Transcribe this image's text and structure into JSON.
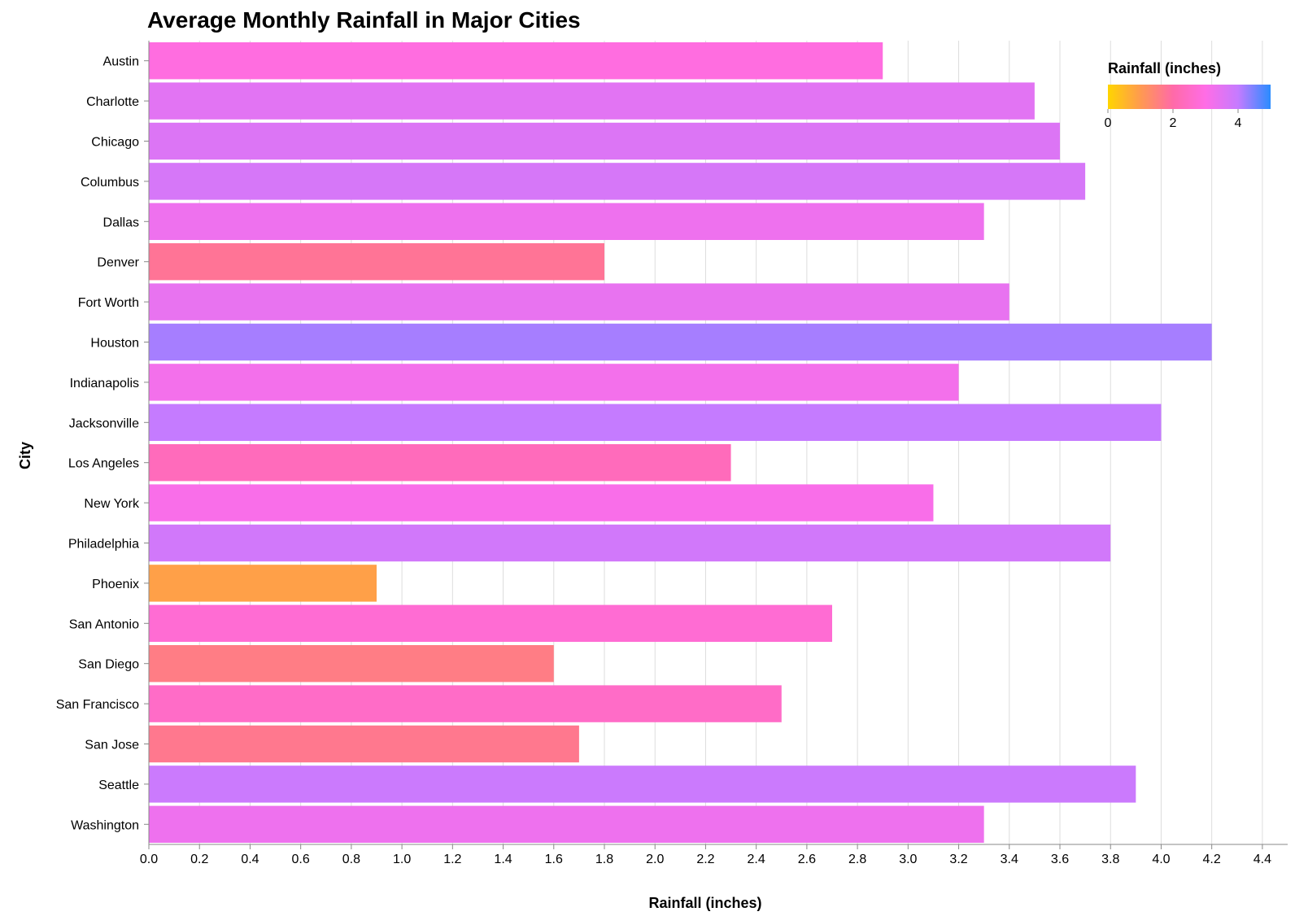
{
  "chart_data": {
    "type": "bar",
    "orientation": "horizontal",
    "title": "Average Monthly Rainfall in Major Cities",
    "xlabel": "Rainfall (inches)",
    "ylabel": "City",
    "xlim": [
      0,
      4.5
    ],
    "x_ticks": [
      "0.0",
      "0.2",
      "0.4",
      "0.6",
      "0.8",
      "1.0",
      "1.2",
      "1.4",
      "1.6",
      "1.8",
      "2.0",
      "2.2",
      "2.4",
      "2.6",
      "2.8",
      "3.0",
      "3.2",
      "3.4",
      "3.6",
      "3.8",
      "4.0",
      "4.2",
      "4.4"
    ],
    "grid": true,
    "categories": [
      "Austin",
      "Charlotte",
      "Chicago",
      "Columbus",
      "Dallas",
      "Denver",
      "Fort Worth",
      "Houston",
      "Indianapolis",
      "Jacksonville",
      "Los Angeles",
      "New York",
      "Philadelphia",
      "Phoenix",
      "San Antonio",
      "San Diego",
      "San Francisco",
      "San Jose",
      "Seattle",
      "Washington"
    ],
    "values": [
      2.9,
      3.5,
      3.6,
      3.7,
      3.3,
      1.8,
      3.4,
      4.2,
      3.2,
      4.0,
      2.3,
      3.1,
      3.8,
      0.9,
      2.7,
      1.6,
      2.5,
      1.7,
      3.9,
      3.3
    ],
    "color_scale": {
      "domain": [
        0,
        5
      ],
      "colors": [
        "#ffd500",
        "#ff9a50",
        "#ff6aa8",
        "#ff6de6",
        "#c57bff",
        "#2a8cff"
      ]
    },
    "legend": {
      "title": "Rainfall (inches)",
      "labels": [
        "0",
        "2",
        "4"
      ],
      "placement": "top-right"
    }
  }
}
